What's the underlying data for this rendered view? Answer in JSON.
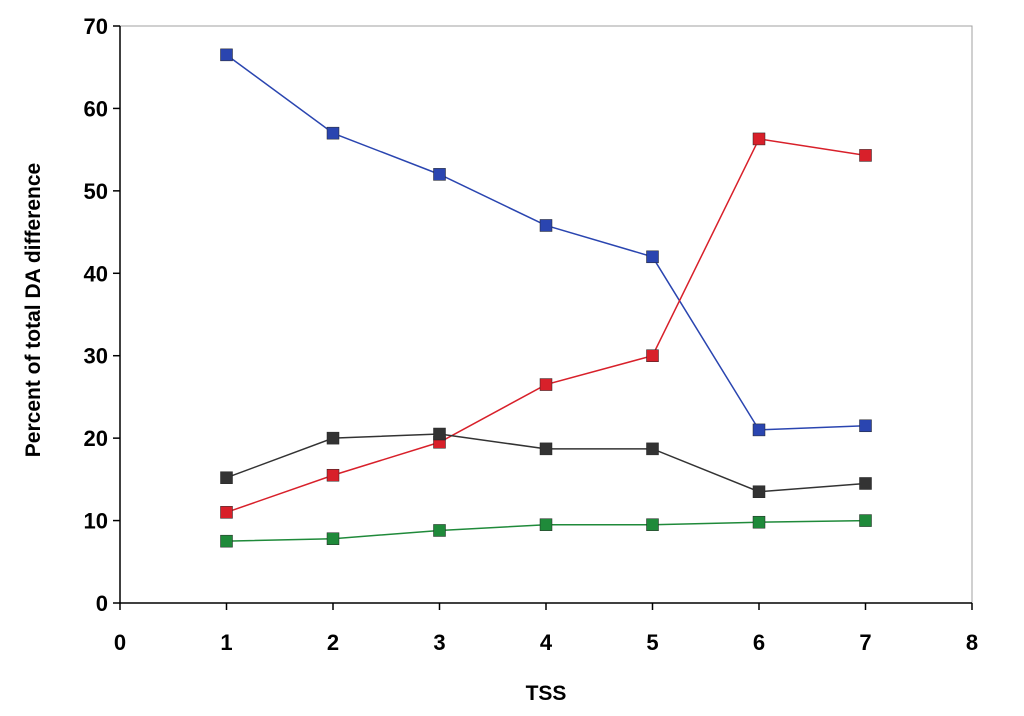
{
  "chart_data": {
    "type": "line",
    "title": "",
    "xlabel": "TSS",
    "ylabel": "Percent of total DA difference",
    "xlim": [
      0,
      8
    ],
    "ylim": [
      0,
      70
    ],
    "xticks": [
      0,
      1,
      2,
      3,
      4,
      5,
      6,
      7,
      8
    ],
    "yticks": [
      0,
      10,
      20,
      30,
      40,
      50,
      60,
      70
    ],
    "grid": false,
    "legend": "none",
    "x": [
      1,
      2,
      3,
      4,
      5,
      6,
      7
    ],
    "series": [
      {
        "color": "#2a45b0",
        "marker": "square",
        "values": [
          66.5,
          57,
          52,
          45.8,
          42,
          21,
          21.5
        ]
      },
      {
        "color": "#d8202a",
        "marker": "square",
        "values": [
          11,
          15.5,
          19.5,
          26.5,
          30,
          56.3,
          54.3
        ]
      },
      {
        "color": "#333333",
        "marker": "square",
        "values": [
          15.2,
          20,
          20.5,
          18.7,
          18.7,
          13.5,
          14.5
        ]
      },
      {
        "color": "#1f8a3a",
        "marker": "square",
        "values": [
          7.5,
          7.8,
          8.8,
          9.5,
          9.5,
          9.8,
          10
        ]
      }
    ]
  }
}
